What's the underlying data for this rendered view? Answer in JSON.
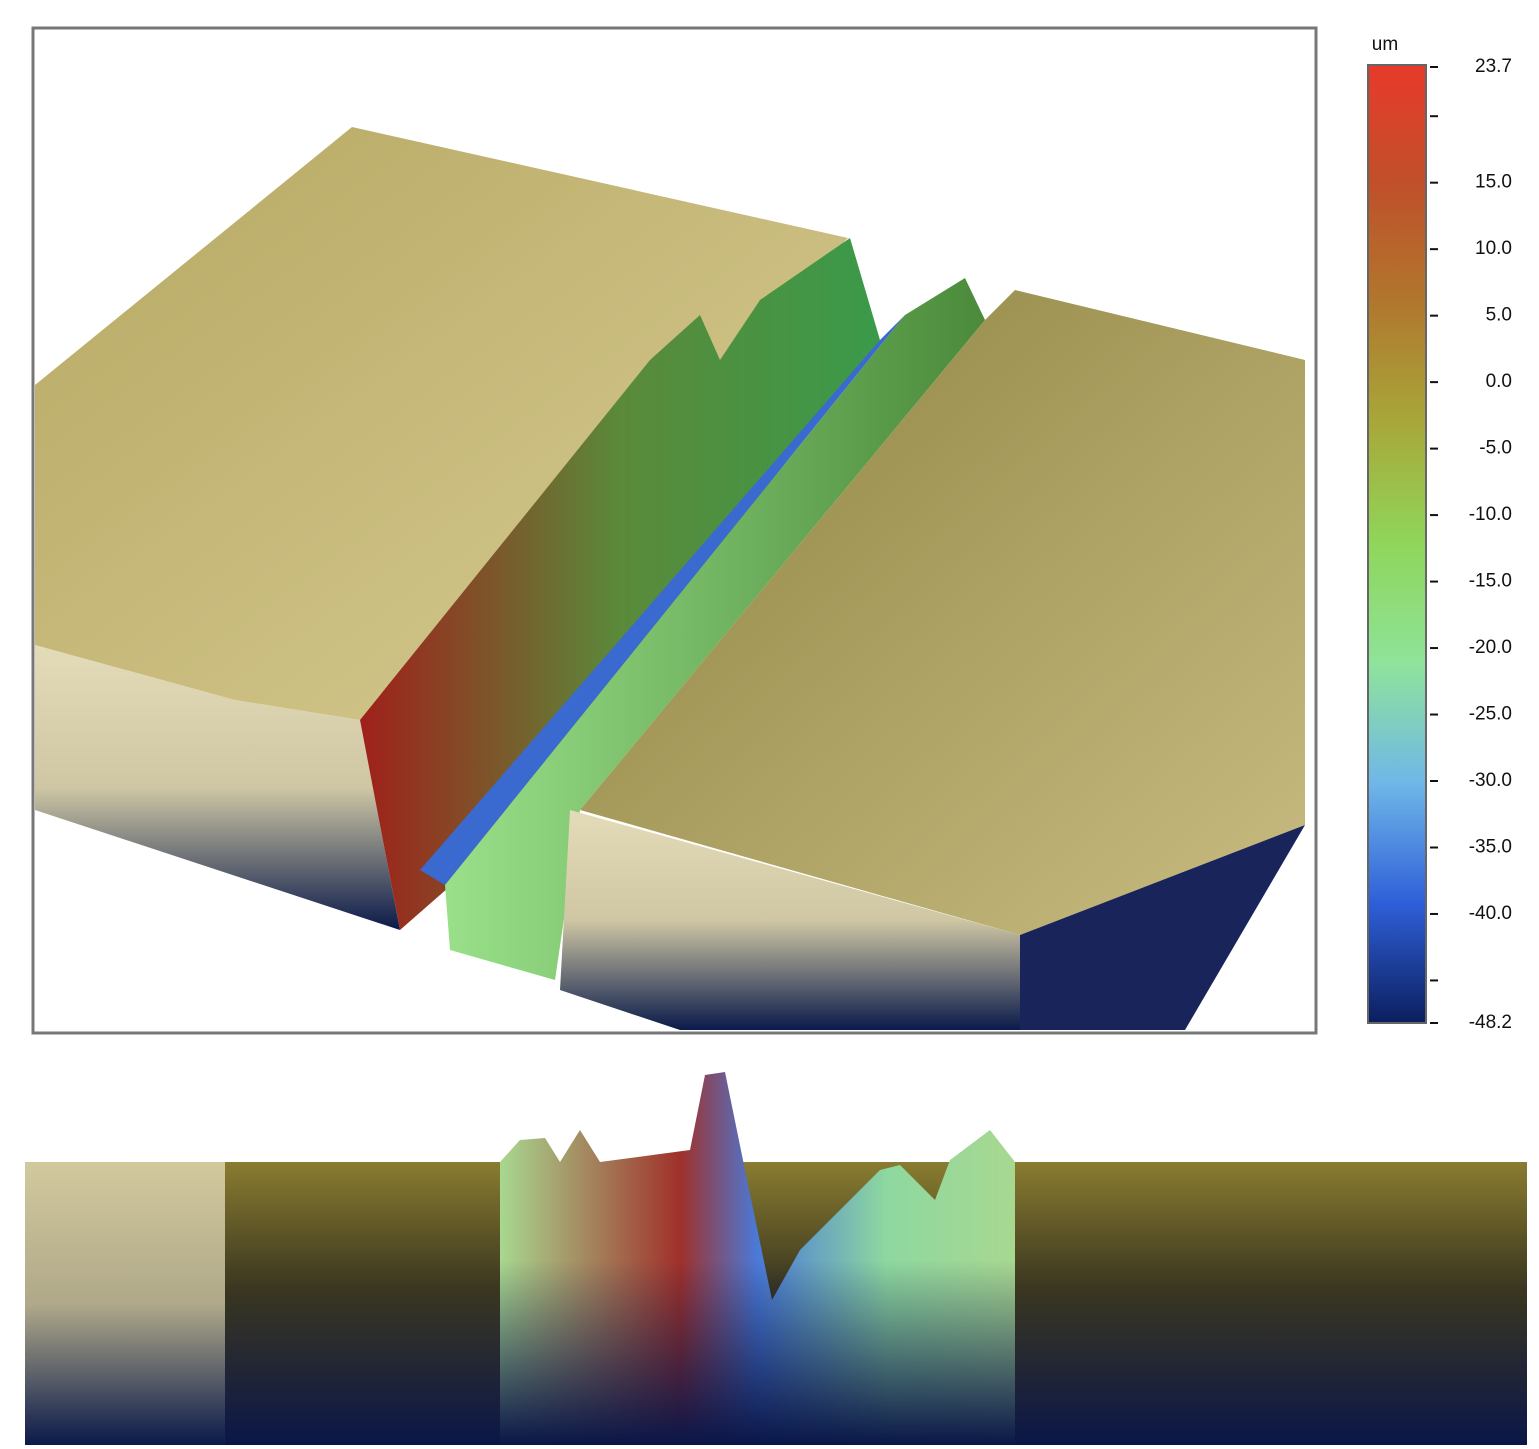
{
  "chart_data": {
    "type": "surface3d",
    "colorbar": {
      "label": "um",
      "clim": [
        -48.2,
        23.7
      ],
      "ticks": [
        23.7,
        {
          "value": 15,
          "label": "15.0"
        },
        {
          "value": 10,
          "label": "10.0"
        },
        {
          "value": 5,
          "label": "5.0"
        },
        {
          "value": 0,
          "label": "0.0"
        },
        {
          "value": -5,
          "label": "-5.0"
        },
        {
          "value": -10,
          "label": "-10.0"
        },
        {
          "value": -15,
          "label": "-15.0"
        },
        {
          "value": -20,
          "label": "-20.0"
        },
        {
          "value": -25,
          "label": "-25.0"
        },
        {
          "value": -30,
          "label": "-30.0"
        },
        {
          "value": -35,
          "label": "-35.0"
        },
        {
          "value": -40,
          "label": "-40.0"
        },
        -48.2
      ],
      "minor_ticks": [
        20,
        -45
      ],
      "colormap": [
        "#0b1f5e",
        "#2f5fd8",
        "#6fb7e8",
        "#8fe39a",
        "#8fd65a",
        "#a8a83a",
        "#b0782e",
        "#c0502a",
        "#e83a2a"
      ]
    }
  }
}
